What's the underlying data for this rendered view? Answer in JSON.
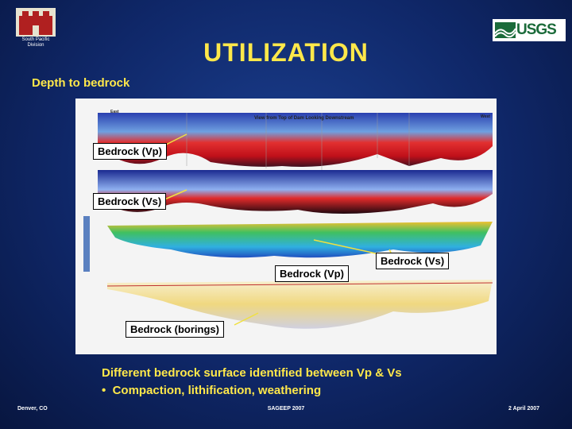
{
  "header": {
    "division": "South Pacific Division",
    "agency": "USGS",
    "title": "UTILIZATION",
    "subtitle": "Depth to bedrock"
  },
  "figure": {
    "view_label": "View from Top of Dam Looking Downstream",
    "east": "East",
    "west": "West",
    "callouts": [
      "Bedrock (Vp)",
      "Bedrock (Vs)",
      "Bedrock (Vs)",
      "Bedrock (Vp)",
      "Bedrock (borings)"
    ]
  },
  "body": {
    "caption": "Different bedrock surface identified between Vp & Vs",
    "bullets": [
      "Compaction, lithification, weathering"
    ]
  },
  "footer": {
    "location": "Denver, CO",
    "event": "SAGEEP 2007",
    "date": "2 April 2007"
  }
}
